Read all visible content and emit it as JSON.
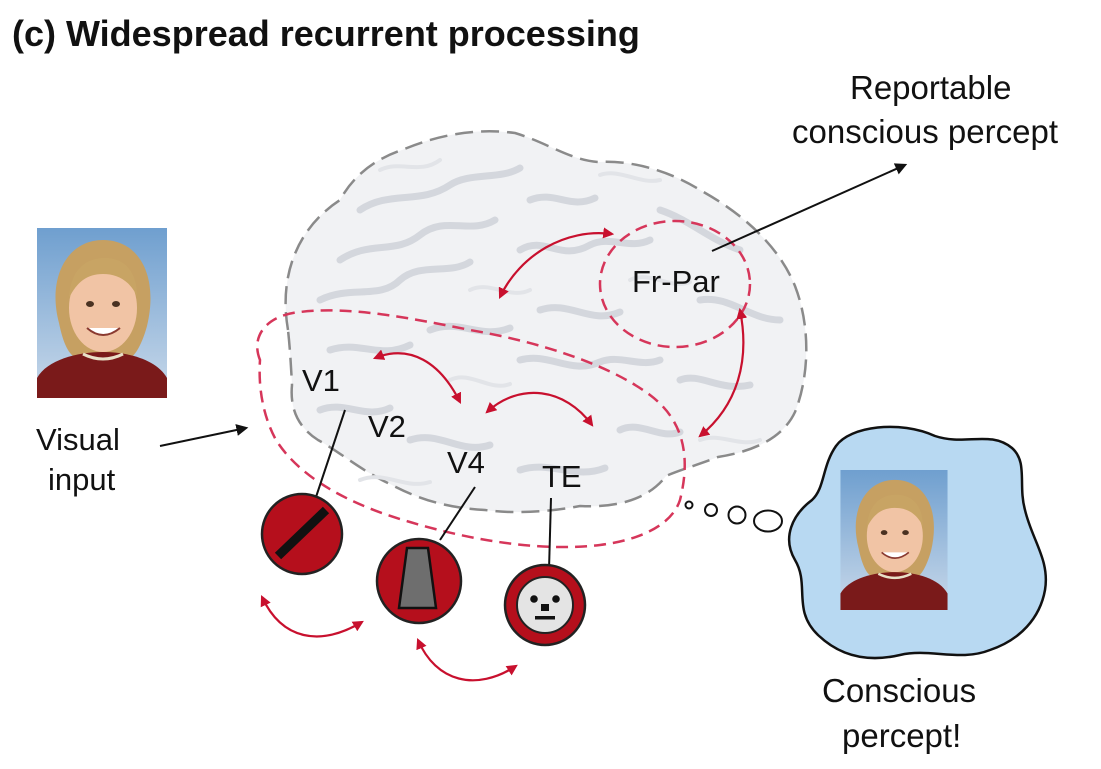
{
  "title": "(c) Widespread recurrent processing",
  "labels": {
    "v1": "V1",
    "v2": "V2",
    "v4": "V4",
    "te": "TE",
    "fr_par": "Fr-Par",
    "visual_input_line1": "Visual",
    "visual_input_line2": "input",
    "reportable_line1": "Reportable",
    "reportable_line2": "conscious percept",
    "conscious_line1": "Conscious",
    "conscious_line2": "percept!"
  },
  "colors": {
    "recurrent_arrow": "#c8102e",
    "dashed_region": "#d6365a",
    "feature_disc": "#b50f1c",
    "thought_bubble": "#b8d9f2",
    "brain": "#f1f2f4",
    "brain_outline": "#8a8a8a"
  },
  "icons": [
    "child-photo",
    "line-orientation-icon",
    "trapezoid-shape-icon",
    "face-icon",
    "thought-bubble"
  ]
}
